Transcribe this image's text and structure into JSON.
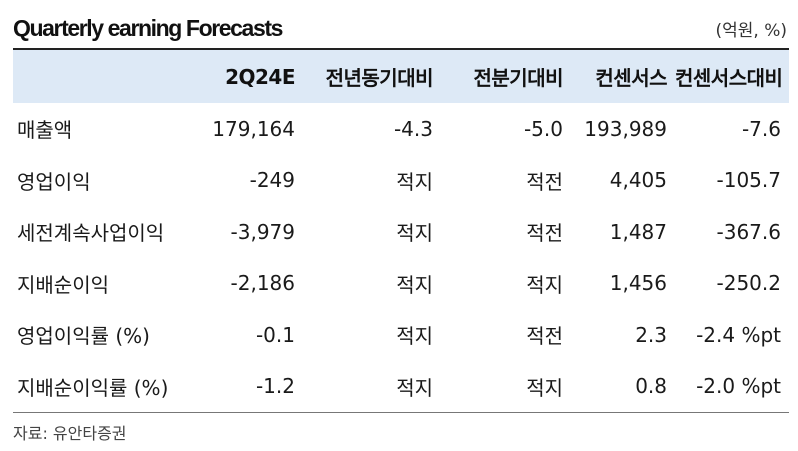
{
  "header": {
    "title": "Quarterly earning Forecasts",
    "unit": "(억원, %)"
  },
  "table": {
    "columns": [
      "",
      "2Q24E",
      "전년동기대비",
      "전분기대비",
      "컨센서스",
      "컨센서스대비"
    ],
    "rows": [
      [
        "매출액",
        "179,164",
        "-4.3",
        "-5.0",
        "193,989",
        "-7.6"
      ],
      [
        "영업이익",
        "-249",
        "적지",
        "적전",
        "4,405",
        "-105.7"
      ],
      [
        "세전계속사업이익",
        "-3,979",
        "적지",
        "적전",
        "1,487",
        "-367.6"
      ],
      [
        "지배순이익",
        "-2,186",
        "적지",
        "적지",
        "1,456",
        "-250.2"
      ],
      [
        "영업이익률 (%)",
        "-0.1",
        "적지",
        "적전",
        "2.3",
        "-2.4 %pt"
      ],
      [
        "지배순이익률 (%)",
        "-1.2",
        "적지",
        "적지",
        "0.8",
        "-2.0 %pt"
      ]
    ]
  },
  "source": "자료: 유안타증권",
  "colors": {
    "header_bg": "#dde9f6",
    "rule": "#222222"
  }
}
